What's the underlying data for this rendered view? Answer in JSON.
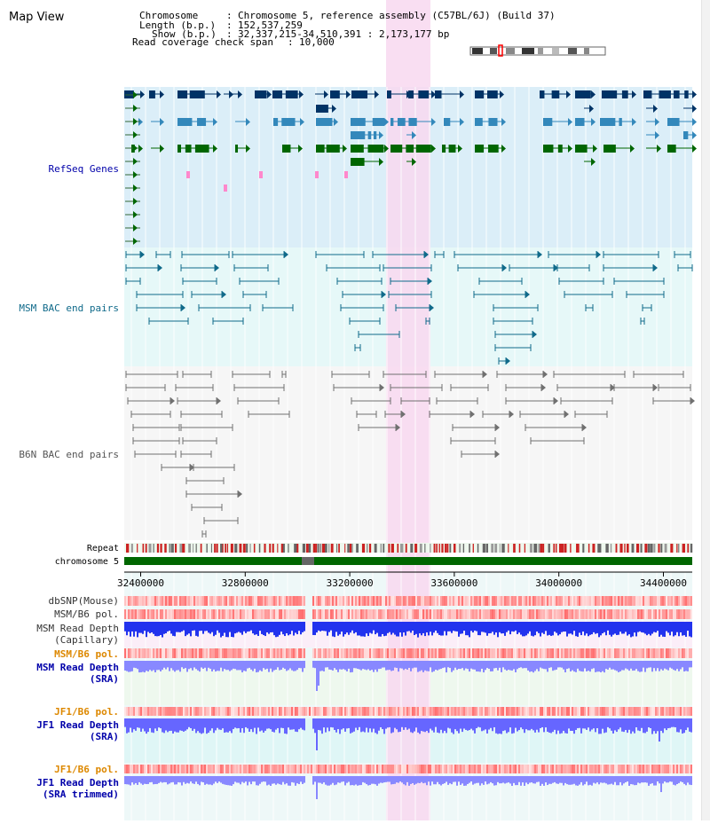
{
  "header": {
    "title": "Map View",
    "info": [
      {
        "key": "Chromosome",
        "value": "Chromosome 5, reference assembly (C57BL/6J) (Build 37)"
      },
      {
        "key": "Length (b.p.)",
        "value": "152,537,259"
      },
      {
        "key": "Show (b.p.)",
        "value": "32,337,215-34,510,391 : 2,173,177 bp"
      },
      {
        "key": "Read coverage check span",
        "value": "10,000"
      }
    ]
  },
  "tracks": {
    "refseq": "RefSeq Genes",
    "msm_bac": "MSM BAC end pairs",
    "b6n_bac": "B6N BAC end pairs",
    "repeat": "Repeat",
    "chromosome": "chromosome 5",
    "dbsnp": "dbSNP(Mouse)",
    "msm_b6_pol": "MSM/B6 pol.",
    "msm_depth_cap": [
      "MSM Read Depth",
      "(Capillary)"
    ],
    "msm_b6_pol2": "MSM/B6 pol.",
    "msm_depth_sra": [
      "MSM Read Depth",
      "(SRA)"
    ],
    "jf1_b6_pol": "JF1/B6 pol.",
    "jf1_depth_sra": [
      "JF1 Read Depth",
      "(SRA)"
    ],
    "jf1_b6_pol2": "JF1/B6 pol.",
    "jf1_depth_trim": [
      "JF1 Read Depth",
      "(SRA trimmed)"
    ]
  },
  "axis": {
    "ticks": [
      "32400000",
      "32800000",
      "33200000",
      "33600000",
      "34000000",
      "34400000"
    ],
    "tick_values": [
      32400000,
      32800000,
      33200000,
      33600000,
      34000000,
      34400000
    ],
    "range": [
      32337215,
      34510391
    ]
  },
  "colors": {
    "refseq_bg": "#dbeef8",
    "msm_bg": "#e6f8f8",
    "b6n_bg": "#f6f6f6",
    "highlight": "#f8d8f0",
    "gene_dark": "#003366",
    "gene_mid": "#3388bb",
    "gene_green": "#006600",
    "msm_line": "#106a8a",
    "b6n_line": "#707070",
    "chrom": "#006600",
    "label_blue": "#0000aa",
    "label_orange": "#dd8800",
    "label_gray": "#333333"
  }
}
